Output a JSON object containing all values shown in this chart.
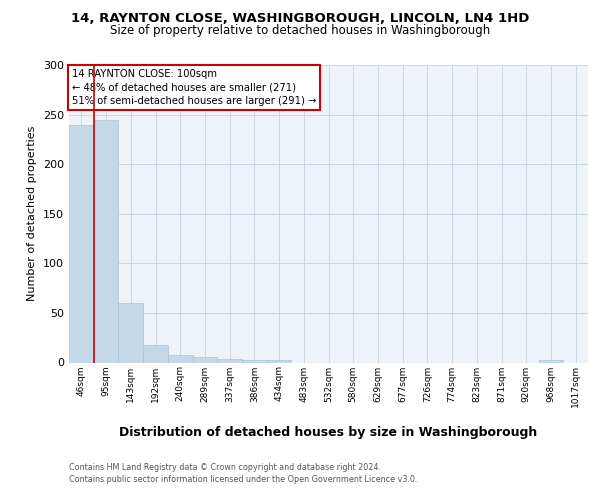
{
  "title1": "14, RAYNTON CLOSE, WASHINGBOROUGH, LINCOLN, LN4 1HD",
  "title2": "Size of property relative to detached houses in Washingborough",
  "xlabel": "Distribution of detached houses by size in Washingborough",
  "ylabel": "Number of detached properties",
  "footnote1": "Contains HM Land Registry data © Crown copyright and database right 2024.",
  "footnote2": "Contains public sector information licensed under the Open Government Licence v3.0.",
  "bin_labels": [
    "46sqm",
    "95sqm",
    "143sqm",
    "192sqm",
    "240sqm",
    "289sqm",
    "337sqm",
    "386sqm",
    "434sqm",
    "483sqm",
    "532sqm",
    "580sqm",
    "629sqm",
    "677sqm",
    "726sqm",
    "774sqm",
    "823sqm",
    "871sqm",
    "920sqm",
    "968sqm",
    "1017sqm"
  ],
  "bar_values": [
    240,
    245,
    60,
    18,
    8,
    6,
    4,
    3,
    3,
    0,
    0,
    0,
    0,
    0,
    0,
    0,
    0,
    0,
    0,
    3,
    0
  ],
  "bar_color": "#c5d8e8",
  "bar_edge_color": "#a8c4d8",
  "grid_color": "#ccd8e4",
  "annotation_line1": "14 RAYNTON CLOSE: 100sqm",
  "annotation_line2": "← 48% of detached houses are smaller (271)",
  "annotation_line3": "51% of semi-detached houses are larger (291) →",
  "annotation_box_color": "#ffffff",
  "annotation_box_edge": "#cc0000",
  "property_line_color": "#cc0000",
  "property_line_x": 0.5,
  "ylim": [
    0,
    300
  ],
  "yticks": [
    0,
    50,
    100,
    150,
    200,
    250,
    300
  ],
  "plot_bg_color": "#edf3f8",
  "title1_fontsize": 9.5,
  "title2_fontsize": 8.5,
  "ylabel_fontsize": 8,
  "xlabel_fontsize": 9
}
